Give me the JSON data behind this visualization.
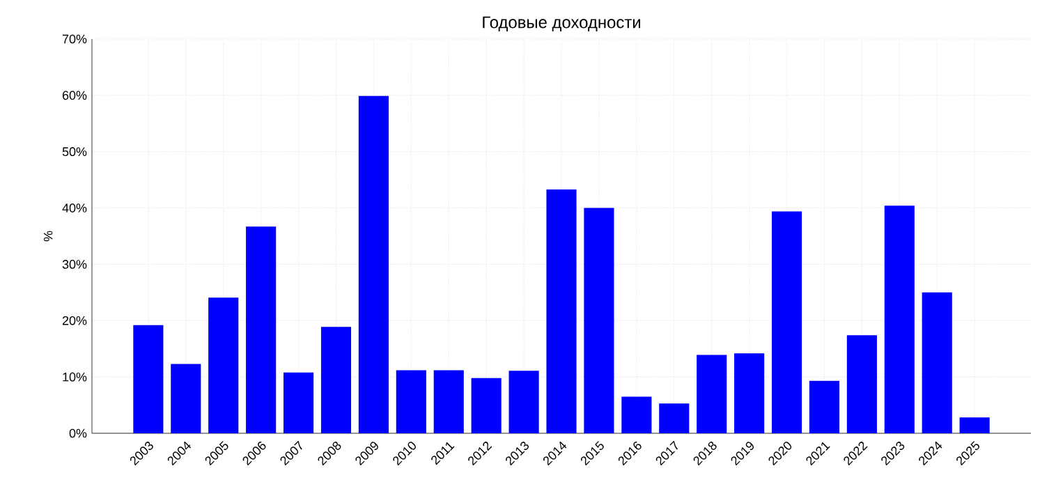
{
  "chart_data": {
    "type": "bar",
    "title": "Годовые доходности",
    "ylabel": "%",
    "categories": [
      "2003",
      "2004",
      "2005",
      "2006",
      "2007",
      "2008",
      "2009",
      "2010",
      "2011",
      "2012",
      "2013",
      "2014",
      "2015",
      "2016",
      "2017",
      "2018",
      "2019",
      "2020",
      "2021",
      "2022",
      "2023",
      "2024",
      "2025"
    ],
    "values": [
      19.2,
      12.3,
      24.1,
      36.7,
      10.8,
      18.9,
      59.9,
      11.2,
      11.2,
      9.8,
      11.1,
      43.3,
      40.0,
      6.5,
      5.3,
      13.9,
      14.2,
      39.4,
      9.3,
      17.4,
      40.4,
      25.0,
      2.8
    ],
    "color": "#0000ff",
    "ylim": [
      0,
      70
    ],
    "yticks": [
      {
        "value": 0,
        "label": "0%"
      },
      {
        "value": 10,
        "label": "10%"
      },
      {
        "value": 20,
        "label": "20%"
      },
      {
        "value": 30,
        "label": "30%"
      },
      {
        "value": 40,
        "label": "40%"
      },
      {
        "value": 50,
        "label": "50%"
      },
      {
        "value": 60,
        "label": "60%"
      },
      {
        "value": 70,
        "label": "70%"
      }
    ],
    "grid": true
  }
}
